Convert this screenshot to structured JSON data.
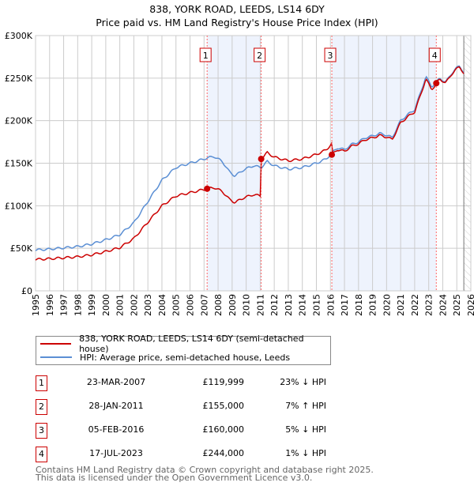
{
  "title": "838, YORK ROAD, LEEDS, LS14 6DY",
  "subtitle": "Price paid vs. HM Land Registry's House Price Index (HPI)",
  "chart_data": {
    "type": "line",
    "xlim": [
      1995,
      2026
    ],
    "ylim": [
      0,
      300000
    ],
    "yticks": [
      {
        "v": 0,
        "label": "£0"
      },
      {
        "v": 50000,
        "label": "£50K"
      },
      {
        "v": 100000,
        "label": "£100K"
      },
      {
        "v": 150000,
        "label": "£150K"
      },
      {
        "v": 200000,
        "label": "£200K"
      },
      {
        "v": 250000,
        "label": "£250K"
      },
      {
        "v": 300000,
        "label": "£300K"
      }
    ],
    "xticks": [
      "1995",
      "1996",
      "1997",
      "1998",
      "1999",
      "2000",
      "2001",
      "2002",
      "2003",
      "2004",
      "2005",
      "2006",
      "2007",
      "2008",
      "2009",
      "2010",
      "2011",
      "2012",
      "2013",
      "2014",
      "2015",
      "2016",
      "2017",
      "2018",
      "2019",
      "2020",
      "2021",
      "2022",
      "2023",
      "2024",
      "2025",
      "2026"
    ],
    "data_end": 2025.5,
    "hpi": {
      "name": "HPI: Average price, semi-detached house, Leeds",
      "color": "#5b8fd4",
      "points": [
        [
          1995,
          48000
        ],
        [
          1996,
          49000
        ],
        [
          1997,
          50500
        ],
        [
          1998,
          52000
        ],
        [
          1999,
          55000
        ],
        [
          2000,
          60000
        ],
        [
          2001,
          66000
        ],
        [
          2002,
          80000
        ],
        [
          2003,
          105000
        ],
        [
          2004,
          130000
        ],
        [
          2005,
          145000
        ],
        [
          2006,
          150000
        ],
        [
          2007.2,
          156000
        ],
        [
          2007.7,
          158000
        ],
        [
          2008.3,
          152000
        ],
        [
          2008.8,
          140000
        ],
        [
          2009.2,
          135000
        ],
        [
          2009.8,
          142000
        ],
        [
          2010.5,
          147000
        ],
        [
          2011.07,
          145000
        ],
        [
          2011.5,
          152000
        ],
        [
          2012,
          147000
        ],
        [
          2013,
          143000
        ],
        [
          2014,
          145000
        ],
        [
          2015,
          150000
        ],
        [
          2015.7,
          155000
        ],
        [
          2016.1,
          162000
        ],
        [
          2016.5,
          168000
        ],
        [
          2017,
          166000
        ],
        [
          2017.5,
          172000
        ],
        [
          2018,
          175000
        ],
        [
          2018.5,
          180000
        ],
        [
          2019,
          182000
        ],
        [
          2019.5,
          185000
        ],
        [
          2020,
          183000
        ],
        [
          2020.4,
          180000
        ],
        [
          2021,
          200000
        ],
        [
          2021.5,
          207000
        ],
        [
          2022,
          213000
        ],
        [
          2022.4,
          232000
        ],
        [
          2022.8,
          252000
        ],
        [
          2023.2,
          240000
        ],
        [
          2023.54,
          245000
        ],
        [
          2023.8,
          250000
        ],
        [
          2024.2,
          245000
        ],
        [
          2024.6,
          255000
        ],
        [
          2025,
          262000
        ],
        [
          2025.2,
          265000
        ],
        [
          2025.5,
          256000
        ]
      ]
    },
    "price_paid": {
      "name": "838, YORK ROAD, LEEDS, LS14 6DY (semi-detached house)",
      "color": "#cc0000"
    },
    "sales": [
      {
        "id": "1",
        "x": 2007.22,
        "date": "23-MAR-2007",
        "price": 119999,
        "price_label": "£119,999",
        "hpi": "23% ↓ HPI"
      },
      {
        "id": "2",
        "x": 2011.07,
        "date": "28-JAN-2011",
        "price": 155000,
        "price_label": "£155,000",
        "hpi": "7% ↑ HPI"
      },
      {
        "id": "3",
        "x": 2016.1,
        "date": "05-FEB-2016",
        "price": 160000,
        "price_label": "£160,000",
        "hpi": "5% ↓ HPI"
      },
      {
        "id": "4",
        "x": 2023.54,
        "date": "17-JUL-2023",
        "price": 244000,
        "price_label": "£244,000",
        "hpi": "1% ↓ HPI"
      }
    ]
  },
  "footer": [
    "Contains HM Land Registry data © Crown copyright and database right 2025.",
    "This data is licensed under the Open Government Licence v3.0."
  ]
}
